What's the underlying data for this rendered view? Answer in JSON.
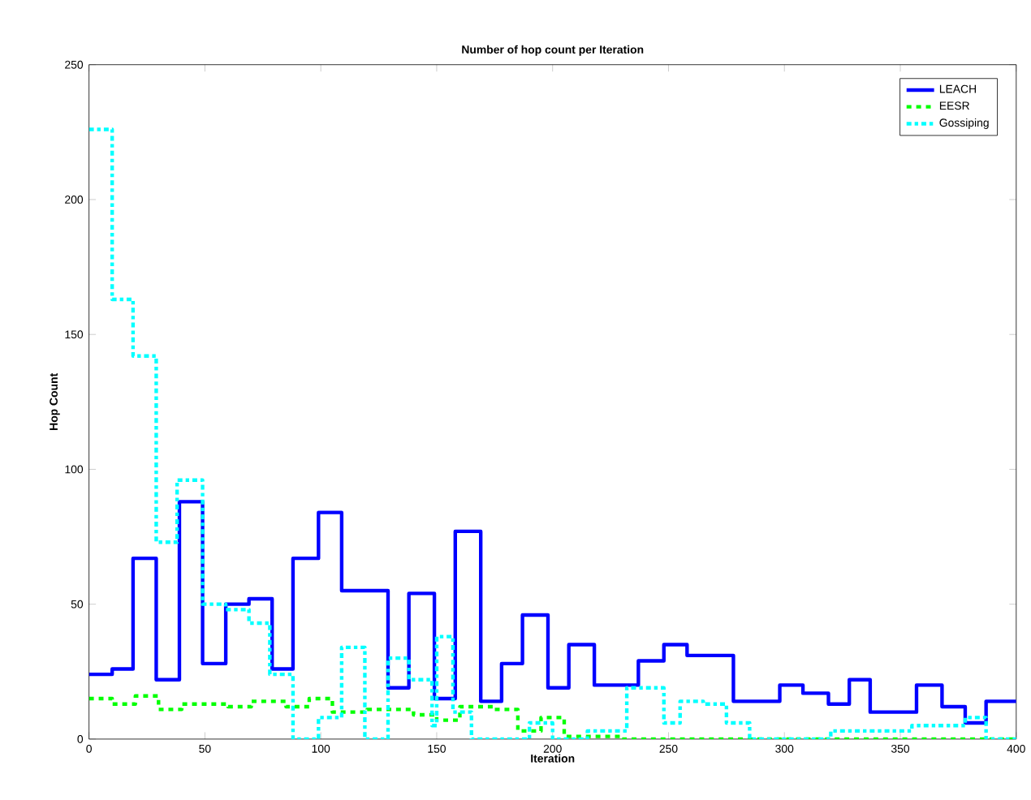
{
  "chart_data": {
    "type": "step",
    "title": "Number of hop count per Iteration",
    "xlabel": "Iteration",
    "ylabel": "Hop Count",
    "xlim": [
      0,
      400
    ],
    "ylim": [
      0,
      250
    ],
    "xticks": [
      0,
      50,
      100,
      150,
      200,
      250,
      300,
      350,
      400
    ],
    "yticks": [
      0,
      50,
      100,
      150,
      200,
      250
    ],
    "grid": false,
    "legend": "top right",
    "series": [
      {
        "name": "LEACH",
        "color": "#0000ff",
        "line_style": "solid",
        "x": [
          0,
          10,
          19,
          29,
          39,
          49,
          59,
          69,
          79,
          88,
          99,
          109,
          129,
          138,
          149,
          158,
          169,
          178,
          187,
          198,
          207,
          218,
          237,
          248,
          258,
          278,
          298,
          308,
          319,
          328,
          337,
          357,
          368,
          378,
          387,
          400
        ],
        "values": [
          24,
          26,
          67,
          22,
          88,
          28,
          50,
          52,
          26,
          67,
          84,
          55,
          19,
          54,
          15,
          77,
          14,
          28,
          46,
          19,
          35,
          20,
          29,
          35,
          31,
          14,
          20,
          17,
          13,
          22,
          10,
          20,
          12,
          6,
          14,
          14
        ]
      },
      {
        "name": "EESR",
        "color": "#00ff00",
        "line_style": "dashed",
        "x": [
          0,
          10,
          20,
          30,
          40,
          60,
          70,
          85,
          95,
          105,
          120,
          140,
          150,
          160,
          175,
          185,
          195,
          205,
          230,
          400
        ],
        "values": [
          15,
          13,
          16,
          11,
          13,
          12,
          14,
          12,
          15,
          10,
          11,
          9,
          7,
          12,
          11,
          3,
          8,
          1,
          0,
          0
        ]
      },
      {
        "name": "Gossiping",
        "color": "#00ffff",
        "line_style": "dashdot",
        "x": [
          0,
          10,
          19,
          29,
          38,
          49,
          59,
          69,
          78,
          88,
          99,
          109,
          119,
          129,
          138,
          148,
          150,
          157,
          165,
          190,
          200,
          215,
          232,
          248,
          255,
          265,
          275,
          285,
          320,
          355,
          378,
          387,
          400
        ],
        "values": [
          226,
          163,
          142,
          73,
          96,
          50,
          48,
          43,
          24,
          0,
          8,
          34,
          0,
          30,
          22,
          5,
          38,
          10,
          0,
          6,
          0,
          3,
          19,
          6,
          14,
          13,
          6,
          0,
          3,
          5,
          8,
          0,
          0
        ]
      }
    ]
  }
}
